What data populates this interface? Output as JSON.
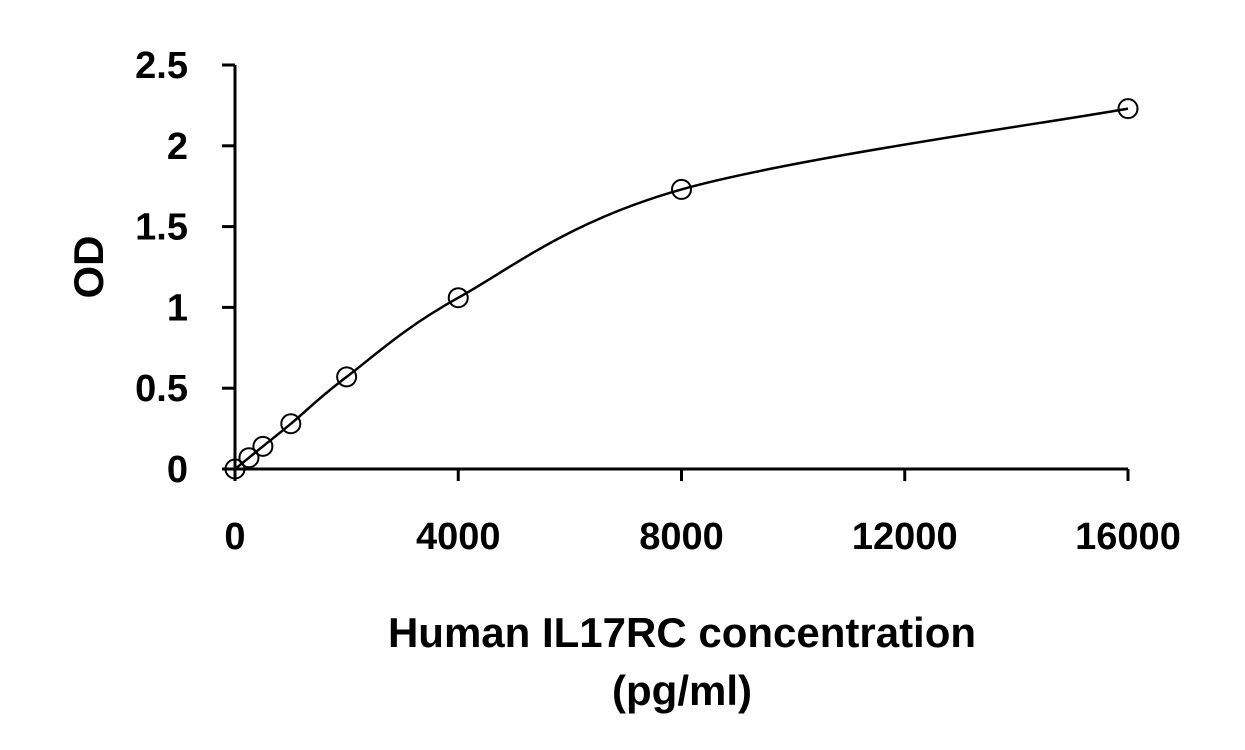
{
  "chart_data": {
    "type": "scatter",
    "xlabel": "Human IL17RC concentration",
    "xlabel_unit": "(pg/ml)",
    "ylabel": "OD",
    "xlim": [
      0,
      16000
    ],
    "ylim": [
      0,
      2.5
    ],
    "x_ticks": [
      0,
      4000,
      8000,
      12000,
      16000
    ],
    "x_tick_labels": [
      "0",
      "4000",
      "8000",
      "12000",
      "16000"
    ],
    "y_ticks": [
      0,
      0.5,
      1,
      1.5,
      2,
      2.5
    ],
    "y_tick_labels": [
      "0",
      "0.5",
      "1",
      "1.5",
      "2",
      "2.5"
    ],
    "grid": false,
    "legend": "none",
    "series": [
      {
        "x": [
          0,
          250,
          500,
          1000,
          2000,
          4000,
          8000,
          16000
        ],
        "y": [
          0.0,
          0.07,
          0.14,
          0.28,
          0.57,
          1.06,
          1.73,
          2.23
        ],
        "marker": "open-circle",
        "fit_line": true,
        "color": "#000000"
      }
    ]
  }
}
